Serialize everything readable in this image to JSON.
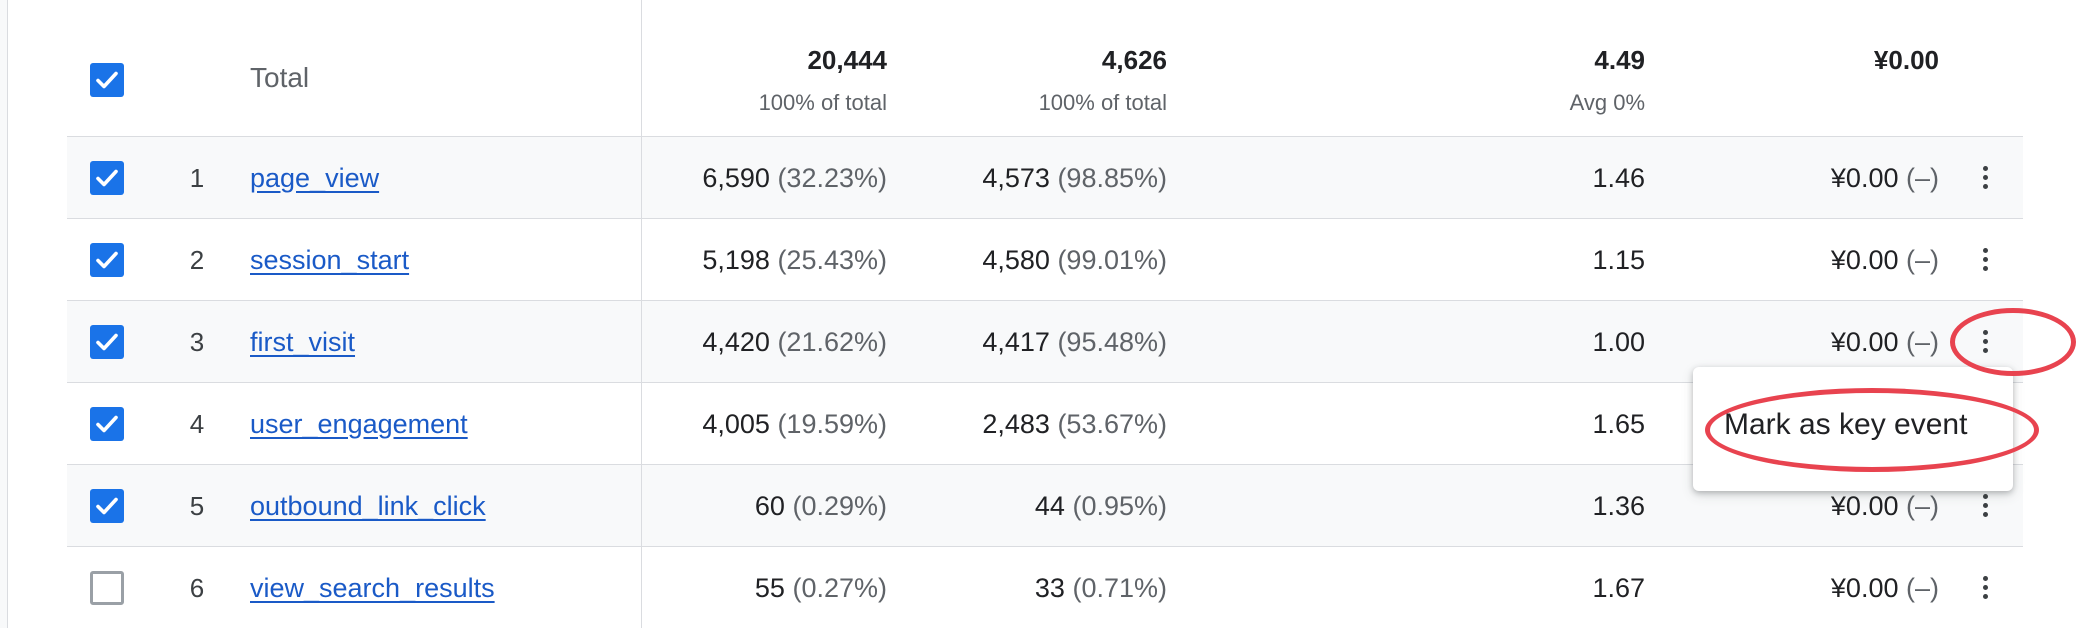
{
  "table": {
    "total_row": {
      "label": "Total",
      "event_count": "20,444",
      "event_count_sub": "100% of total",
      "total_users": "4,626",
      "total_users_sub": "100% of total",
      "events_per_user": "4.49",
      "events_per_user_sub": "Avg 0%",
      "revenue": "¥0.00"
    },
    "rows": [
      {
        "rank": "1",
        "event_name": "page_view",
        "event_count": "6,590",
        "event_count_pct": "(32.23%)",
        "total_users": "4,573",
        "total_users_pct": "(98.85%)",
        "events_per_user": "1.46",
        "revenue": "¥0.00",
        "revenue_pct": "(–)",
        "checked": true
      },
      {
        "rank": "2",
        "event_name": "session_start",
        "event_count": "5,198",
        "event_count_pct": "(25.43%)",
        "total_users": "4,580",
        "total_users_pct": "(99.01%)",
        "events_per_user": "1.15",
        "revenue": "¥0.00",
        "revenue_pct": "(–)",
        "checked": true
      },
      {
        "rank": "3",
        "event_name": "first_visit",
        "event_count": "4,420",
        "event_count_pct": "(21.62%)",
        "total_users": "4,417",
        "total_users_pct": "(95.48%)",
        "events_per_user": "1.00",
        "revenue": "¥0.00",
        "revenue_pct": "(–)",
        "checked": true
      },
      {
        "rank": "4",
        "event_name": "user_engagement",
        "event_count": "4,005",
        "event_count_pct": "(19.59%)",
        "total_users": "2,483",
        "total_users_pct": "(53.67%)",
        "events_per_user": "1.65",
        "revenue": "",
        "revenue_pct": "",
        "checked": true
      },
      {
        "rank": "5",
        "event_name": "outbound_link_click",
        "event_count": "60",
        "event_count_pct": "(0.29%)",
        "total_users": "44",
        "total_users_pct": "(0.95%)",
        "events_per_user": "1.36",
        "revenue": "¥0.00",
        "revenue_pct": "(–)",
        "checked": true
      },
      {
        "rank": "6",
        "event_name": "view_search_results",
        "event_count": "55",
        "event_count_pct": "(0.27%)",
        "total_users": "33",
        "total_users_pct": "(0.71%)",
        "events_per_user": "1.67",
        "revenue": "¥0.00",
        "revenue_pct": "(–)",
        "checked": false
      }
    ]
  },
  "context_menu": {
    "item_label": "Mark as key event"
  },
  "colors": {
    "accent": "#1a73e8",
    "link": "#1a5ac7",
    "annotation": "#e8434f"
  },
  "icons": [
    "checkmark-icon",
    "more-vert-icon"
  ]
}
